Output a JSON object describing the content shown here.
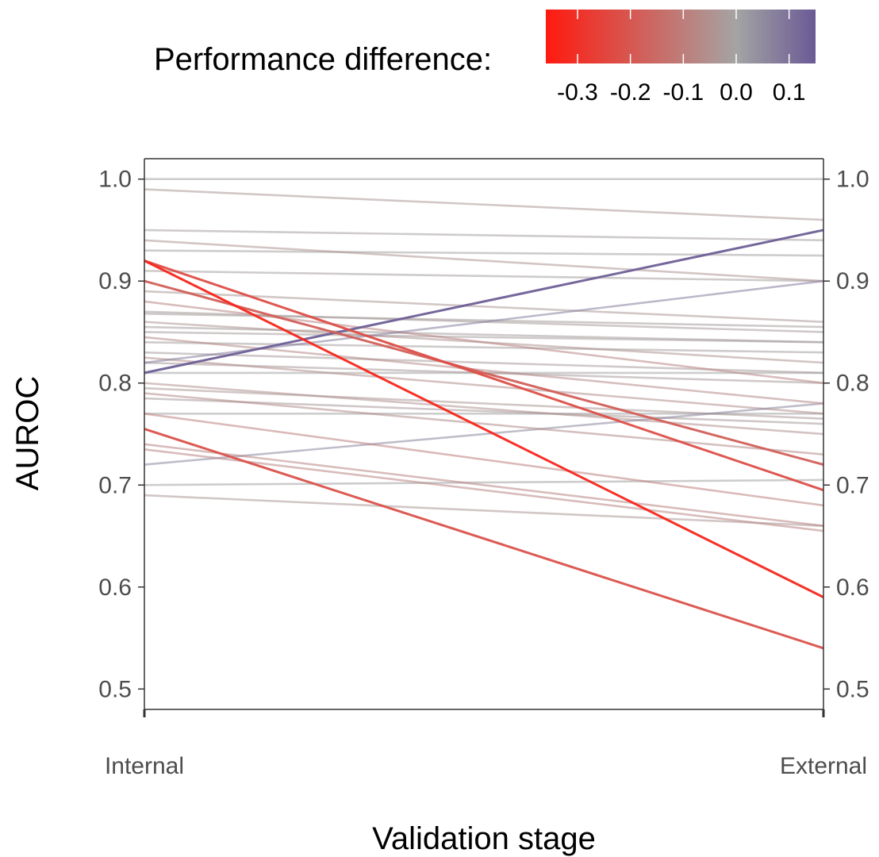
{
  "chart_data": {
    "type": "line",
    "title": "",
    "xlabel": "Validation stage",
    "ylabel": "AUROC",
    "categories": [
      "Internal",
      "External"
    ],
    "ylim": [
      0.48,
      1.02
    ],
    "y_ticks": [
      "0.5",
      "0.6",
      "0.7",
      "0.8",
      "0.9",
      "1.0"
    ],
    "y_tick_values": [
      0.5,
      0.6,
      0.7,
      0.8,
      0.9,
      1.0
    ],
    "secondary_y_axis": "right",
    "grid": false,
    "legend": {
      "title": "Performance difference:",
      "placement": "top",
      "type": "colorbar",
      "range": [
        -0.36,
        0.15
      ],
      "ticks": [
        "-0.3",
        "-0.2",
        "-0.1",
        "0.0",
        "0.1"
      ],
      "tick_values": [
        -0.3,
        -0.2,
        -0.1,
        0.0,
        0.1
      ],
      "colors": {
        "low": "#ff1a0f",
        "mid": "#a4a4a4",
        "high": "#6a5a95"
      }
    },
    "series": [
      {
        "values": [
          0.92,
          0.59
        ]
      },
      {
        "values": [
          0.755,
          0.54
        ]
      },
      {
        "values": [
          0.81,
          0.95
        ]
      },
      {
        "values": [
          0.72,
          0.78
        ]
      },
      {
        "values": [
          0.82,
          0.9
        ]
      },
      {
        "values": [
          0.92,
          0.695
        ]
      },
      {
        "values": [
          0.9,
          0.72
        ]
      },
      {
        "values": [
          0.95,
          0.94
        ]
      },
      {
        "values": [
          0.99,
          0.96
        ]
      },
      {
        "values": [
          1.0,
          1.0
        ]
      },
      {
        "values": [
          0.94,
          0.9
        ]
      },
      {
        "values": [
          0.93,
          0.925
        ]
      },
      {
        "values": [
          0.91,
          0.9
        ]
      },
      {
        "values": [
          0.89,
          0.86
        ]
      },
      {
        "values": [
          0.87,
          0.85
        ]
      },
      {
        "values": [
          0.868,
          0.855
        ]
      },
      {
        "values": [
          0.86,
          0.82
        ]
      },
      {
        "values": [
          0.85,
          0.84
        ]
      },
      {
        "values": [
          0.845,
          0.78
        ]
      },
      {
        "values": [
          0.84,
          0.83
        ]
      },
      {
        "values": [
          0.83,
          0.81
        ]
      },
      {
        "values": [
          0.825,
          0.77
        ]
      },
      {
        "values": [
          0.82,
          0.8
        ]
      },
      {
        "values": [
          0.81,
          0.81
        ]
      },
      {
        "values": [
          0.8,
          0.75
        ]
      },
      {
        "values": [
          0.795,
          0.765
        ]
      },
      {
        "values": [
          0.79,
          0.73
        ]
      },
      {
        "values": [
          0.785,
          0.76
        ]
      },
      {
        "values": [
          0.77,
          0.77
        ]
      },
      {
        "values": [
          0.77,
          0.68
        ]
      },
      {
        "values": [
          0.74,
          0.66
        ]
      },
      {
        "values": [
          0.735,
          0.655
        ]
      },
      {
        "values": [
          0.7,
          0.705
        ]
      },
      {
        "values": [
          0.69,
          0.66
        ]
      },
      {
        "values": [
          0.88,
          0.8
        ]
      },
      {
        "values": [
          0.855,
          0.84
        ]
      }
    ]
  }
}
